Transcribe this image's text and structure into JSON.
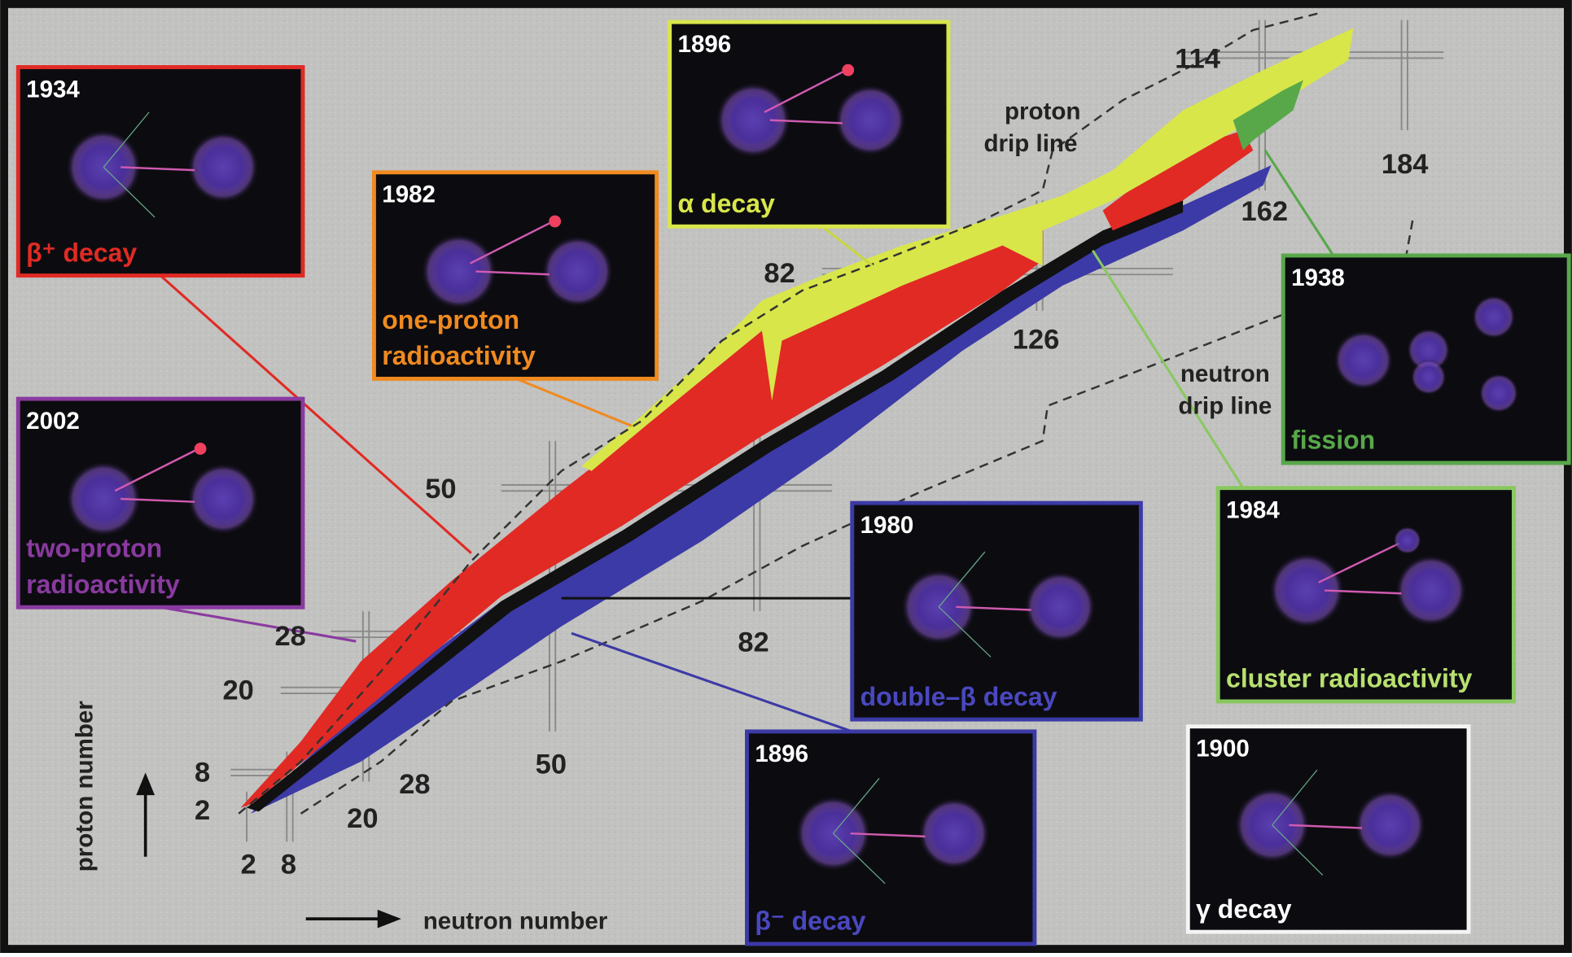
{
  "panels": [
    {
      "year": "1934",
      "label": [
        "β⁺ decay"
      ]
    },
    {
      "year": "1982",
      "label": [
        "one-proton",
        "radioactivity"
      ]
    },
    {
      "year": "1896",
      "label": [
        "α decay"
      ]
    },
    {
      "year": "2002",
      "label": [
        "two-proton",
        "radioactivity"
      ]
    },
    {
      "year": "1938",
      "label": [
        "fission"
      ]
    },
    {
      "year": "1984",
      "label": [
        "cluster radioactivity"
      ]
    },
    {
      "year": "1980",
      "label": [
        "double–β decay"
      ]
    },
    {
      "year": "1896",
      "label": [
        "β⁻ decay"
      ]
    },
    {
      "year": "1900",
      "label": [
        "γ decay"
      ]
    }
  ],
  "proton_magic": [
    "114",
    "82",
    "50",
    "28",
    "20",
    "8",
    "2"
  ],
  "neutron_magic": [
    "184",
    "162",
    "126",
    "82",
    "50",
    "28",
    "20",
    "8",
    "2"
  ],
  "proton_drip_line": [
    "proton",
    "drip line"
  ],
  "neutron_drip_line": [
    "neutron",
    "drip line"
  ],
  "axes": {
    "y": "proton number",
    "x": "neutron number"
  }
}
